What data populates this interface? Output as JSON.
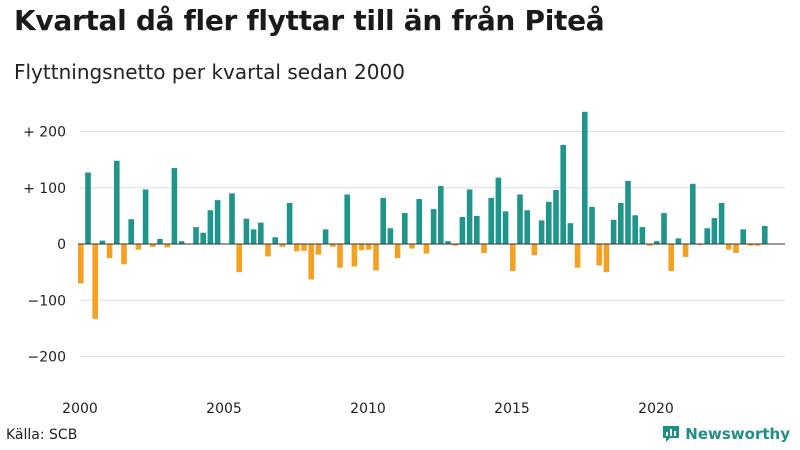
{
  "header": {
    "title": "Kvartal då fler flyttar till än från Piteå",
    "subtitle": "Flyttningsnetto per kvartal sedan 2000"
  },
  "footer": {
    "source": "Källa: SCB",
    "brand": "Newsworthy"
  },
  "colors": {
    "positive": "#1f958b",
    "negative": "#f4a020",
    "grid": "#dddddd",
    "zero_line": "#333333",
    "brand": "#1f8f86"
  },
  "chart_data": {
    "type": "bar",
    "title": "Kvartal då fler flyttar till än från Piteå",
    "subtitle": "Flyttningsnetto per kvartal sedan 2000",
    "x_start": "2000 Q1",
    "x_tick_labels": [
      "2000",
      "2005",
      "2010",
      "2015",
      "2020"
    ],
    "y_tick_values": [
      200,
      100,
      0,
      -100,
      -200
    ],
    "y_tick_labels": [
      "+ 200",
      "+ 100",
      "0",
      "−100",
      "−200"
    ],
    "ylim": [
      -225,
      245
    ],
    "grid": true,
    "values": [
      -70,
      127,
      -133,
      6,
      -25,
      148,
      -36,
      44,
      -10,
      97,
      -5,
      9,
      -6,
      135,
      5,
      0,
      30,
      20,
      60,
      78,
      0,
      90,
      -50,
      45,
      26,
      38,
      -22,
      12,
      -5,
      73,
      -13,
      -12,
      -63,
      -19,
      26,
      -5,
      -42,
      88,
      -40,
      -11,
      -10,
      -47,
      82,
      28,
      -25,
      55,
      -8,
      80,
      -17,
      62,
      103,
      5,
      -3,
      48,
      97,
      50,
      -16,
      82,
      118,
      58,
      -48,
      88,
      60,
      -20,
      42,
      75,
      96,
      176,
      37,
      -42,
      235,
      66,
      -38,
      -50,
      43,
      73,
      112,
      51,
      30,
      -3,
      5,
      55,
      -48,
      10,
      -23,
      107,
      -2,
      28,
      46,
      73,
      -10,
      -16,
      26,
      -3,
      -3,
      32
    ]
  }
}
